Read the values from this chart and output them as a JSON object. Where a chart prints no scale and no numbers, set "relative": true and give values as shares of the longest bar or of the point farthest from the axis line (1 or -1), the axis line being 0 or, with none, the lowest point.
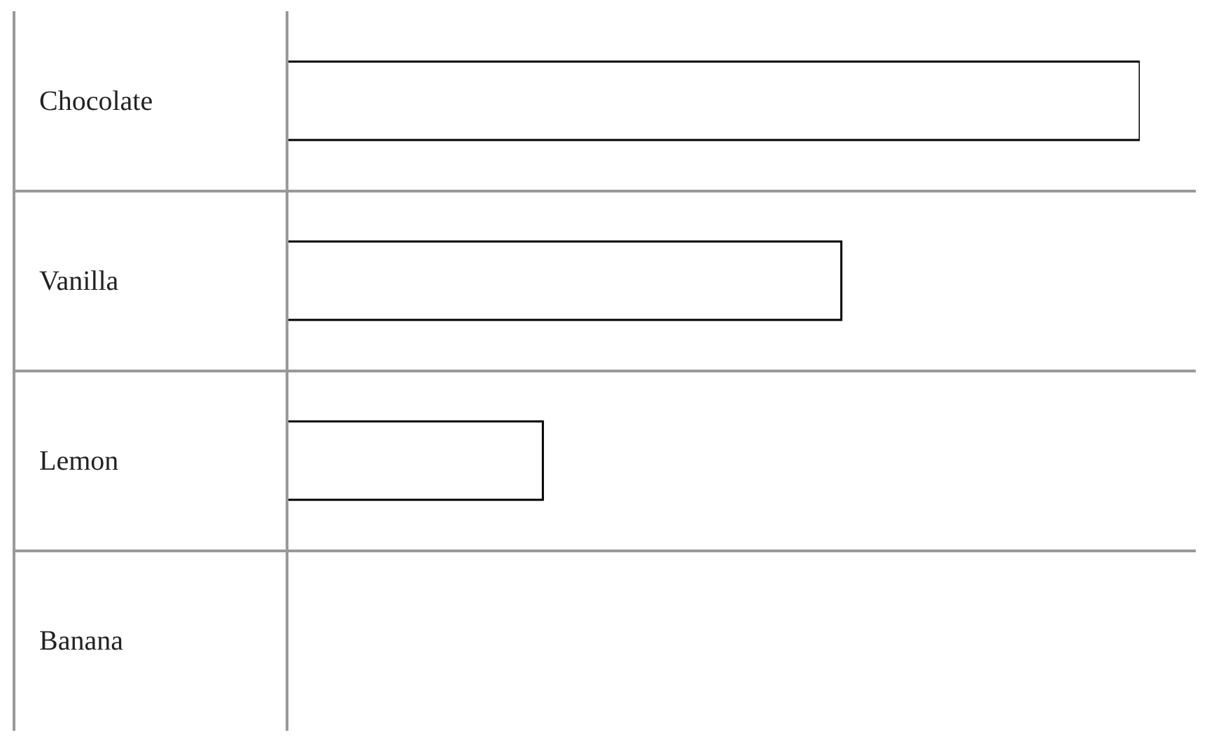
{
  "chart_data": {
    "type": "bar",
    "orientation": "horizontal",
    "relative": true,
    "categories": [
      "Chocolate",
      "Vanilla",
      "Lemon",
      "Banana"
    ],
    "values": [
      1,
      0.65,
      0.3,
      0
    ],
    "color": "#ffffff"
  }
}
